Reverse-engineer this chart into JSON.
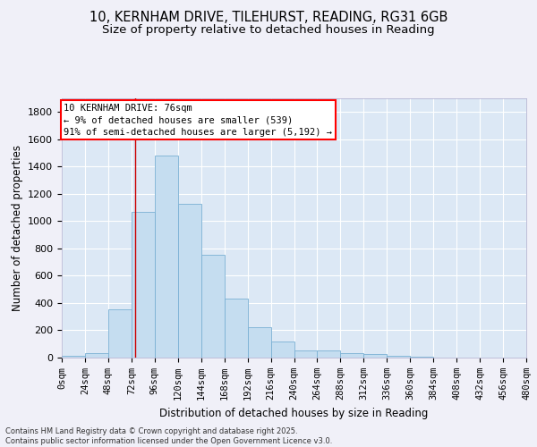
{
  "title_line1": "10, KERNHAM DRIVE, TILEHURST, READING, RG31 6GB",
  "title_line2": "Size of property relative to detached houses in Reading",
  "xlabel": "Distribution of detached houses by size in Reading",
  "ylabel": "Number of detached properties",
  "bar_color": "#c5ddf0",
  "bar_edge_color": "#7ab0d4",
  "plot_bg_color": "#dce8f5",
  "fig_bg_color": "#f0f0f8",
  "annotation_text": "10 KERNHAM DRIVE: 76sqm\n← 9% of detached houses are smaller (539)\n91% of semi-detached houses are larger (5,192) →",
  "vline_x": 76,
  "vline_color": "#cc0000",
  "bin_edges": [
    0,
    24,
    48,
    72,
    96,
    120,
    144,
    168,
    192,
    216,
    240,
    264,
    288,
    312,
    336,
    360,
    384,
    408,
    432,
    456,
    480
  ],
  "bar_heights": [
    10,
    35,
    355,
    1070,
    1480,
    1130,
    755,
    435,
    220,
    120,
    55,
    50,
    30,
    25,
    10,
    5,
    3,
    2,
    1,
    1
  ],
  "ylim": [
    0,
    1900
  ],
  "yticks": [
    0,
    200,
    400,
    600,
    800,
    1000,
    1200,
    1400,
    1600,
    1800
  ],
  "footer_text": "Contains HM Land Registry data © Crown copyright and database right 2025.\nContains public sector information licensed under the Open Government Licence v3.0.",
  "title_fontsize": 10.5,
  "subtitle_fontsize": 9.5,
  "axis_label_fontsize": 8.5,
  "tick_fontsize": 7.5,
  "annotation_fontsize": 7.5,
  "footer_fontsize": 6
}
